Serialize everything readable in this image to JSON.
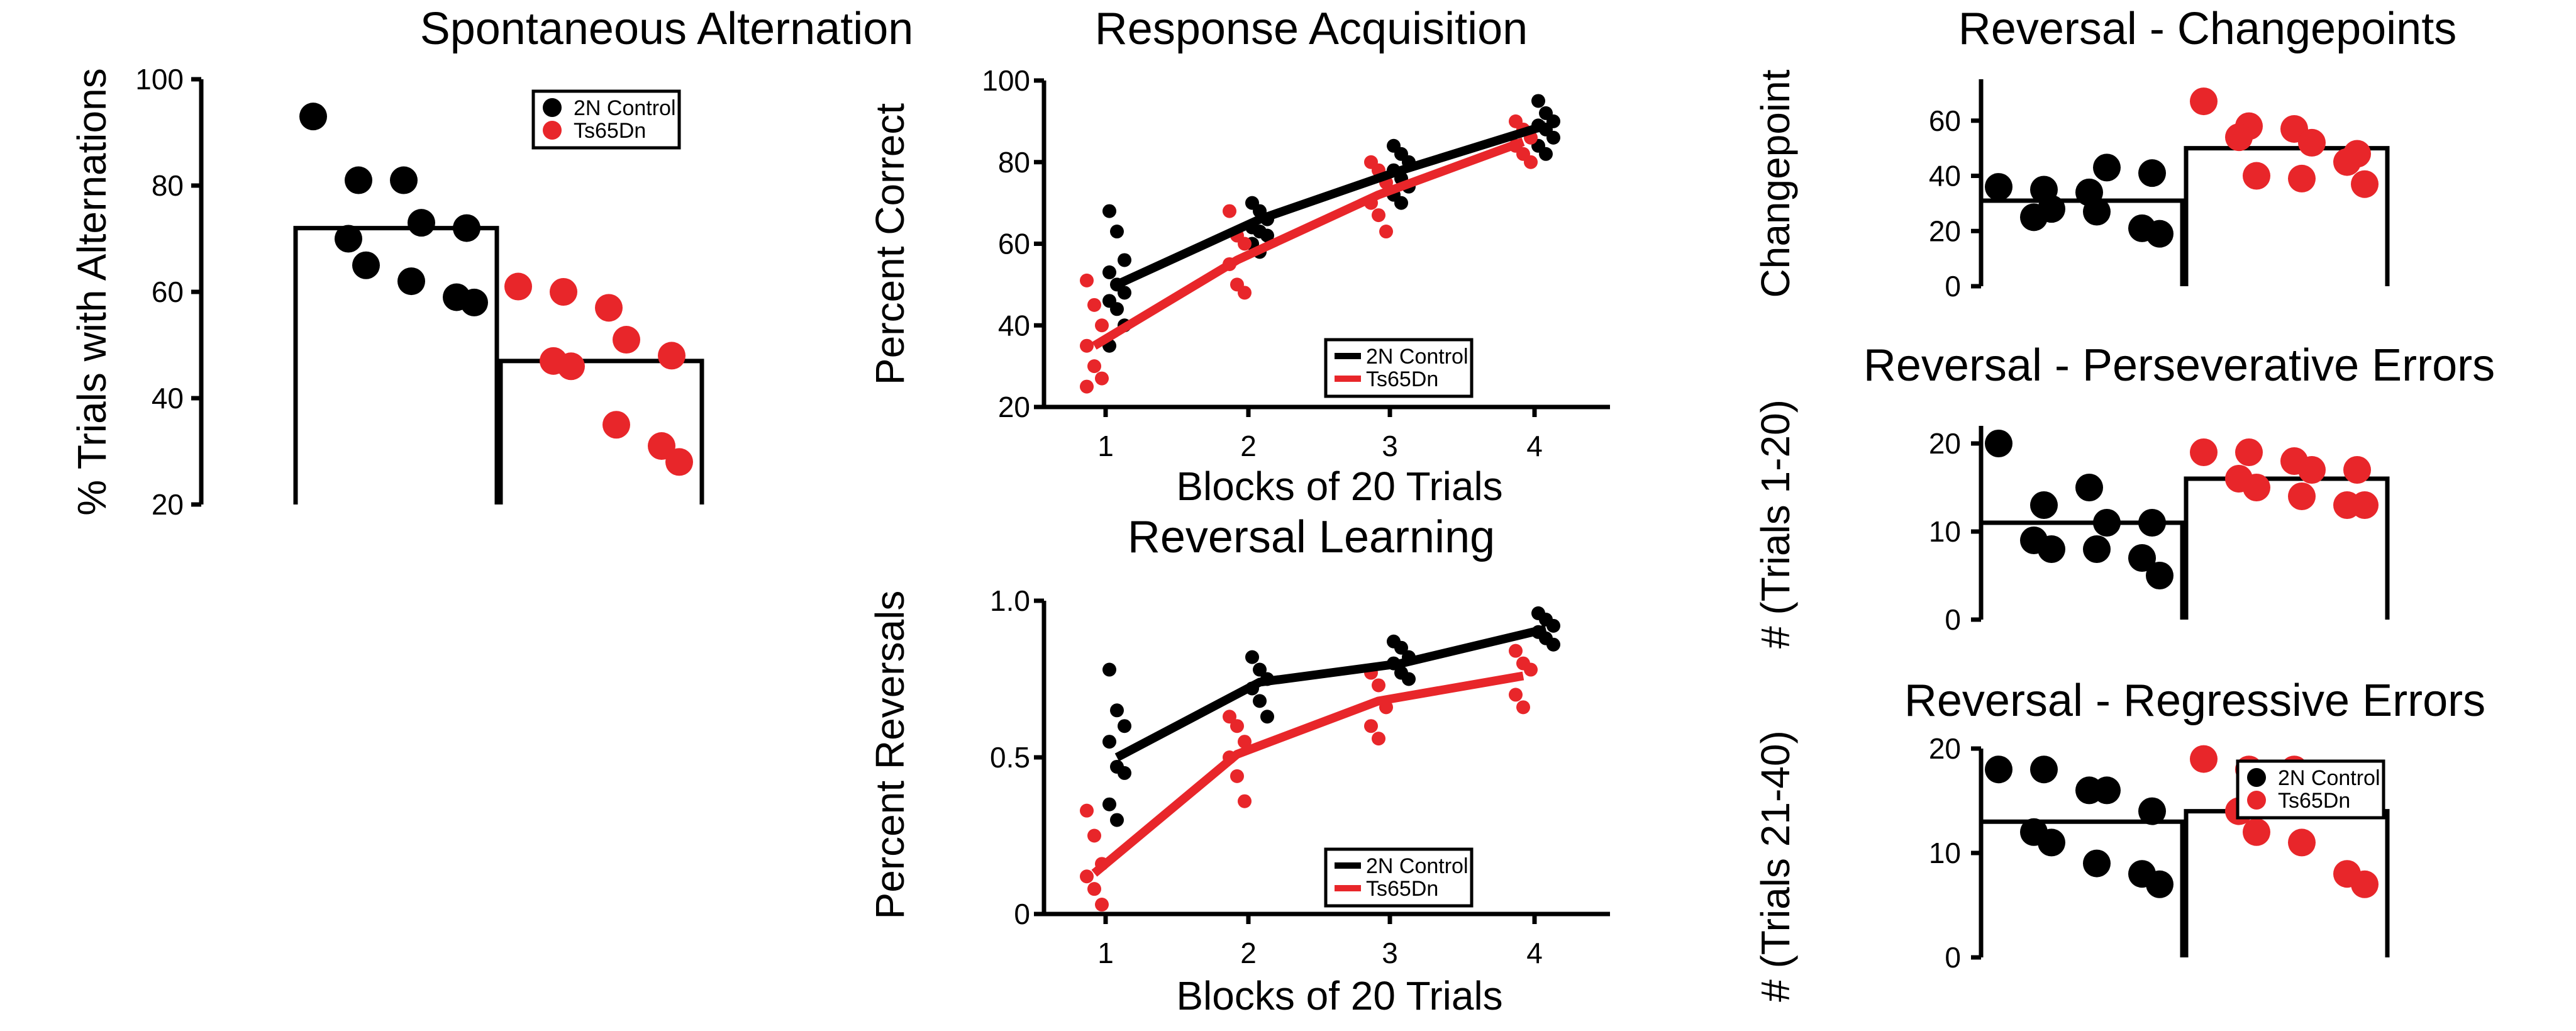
{
  "colors": {
    "control": "#000000",
    "ts": "#e8262a"
  },
  "chart_data": [
    {
      "id": "spontaneous",
      "type": "bar",
      "title": "Spontaneous Alternation",
      "xlabel": "",
      "ylabel": "% Trials with Alternations",
      "ylim": [
        20,
        100
      ],
      "yticks": [
        "20",
        "40",
        "60",
        "80",
        "100"
      ],
      "categories": [
        "2N Control",
        "Ts65Dn"
      ],
      "values": [
        72,
        47
      ],
      "points": [
        [
          93,
          81,
          81,
          73,
          72,
          70,
          65,
          62,
          59,
          58
        ],
        [
          61,
          60,
          57,
          51,
          48,
          47,
          46,
          35,
          31,
          28
        ]
      ],
      "legend": {
        "placement": "top-right",
        "entries": [
          "2N Control",
          "Ts65Dn"
        ]
      }
    },
    {
      "id": "acquisition",
      "type": "line",
      "title": "Response Acquisition",
      "xlabel": "Blocks of 20 Trials",
      "ylabel": "Percent Correct",
      "ylim": [
        20,
        100
      ],
      "yticks": [
        "20",
        "40",
        "60",
        "80",
        "100"
      ],
      "x": [
        1,
        2,
        3,
        4
      ],
      "xticks": [
        "1",
        "2",
        "3",
        "4"
      ],
      "series": [
        {
          "name": "2N Control",
          "values": [
            50,
            66,
            78,
            89
          ],
          "points": [
            [
              68,
              63,
              56,
              53,
              50,
              48,
              46,
              44,
              40,
              35
            ],
            [
              70,
              68,
              66,
              64,
              63,
              62,
              60,
              58
            ],
            [
              84,
              82,
              80,
              78,
              76,
              74,
              72,
              70
            ],
            [
              95,
              92,
              90,
              89,
              88,
              86,
              84,
              82
            ]
          ]
        },
        {
          "name": "Ts65Dn",
          "values": [
            35,
            56,
            72,
            85
          ],
          "points": [
            [
              51,
              45,
              40,
              35,
              30,
              27,
              25
            ],
            [
              68,
              62,
              60,
              55,
              50,
              48
            ],
            [
              80,
              78,
              75,
              70,
              67,
              63
            ],
            [
              90,
              88,
              86,
              84,
              82,
              80
            ]
          ]
        }
      ],
      "legend": {
        "placement": "bottom-right",
        "entries": [
          "2N Control",
          "Ts65Dn"
        ]
      }
    },
    {
      "id": "reversal",
      "type": "line",
      "title": "Reversal Learning",
      "xlabel": "Blocks of 20 Trials",
      "ylabel": "Percent Reversals",
      "ylim": [
        0,
        1.0
      ],
      "yticks": [
        "0",
        "0.5",
        "1.0"
      ],
      "x": [
        1,
        2,
        3,
        4
      ],
      "xticks": [
        "1",
        "2",
        "3",
        "4"
      ],
      "series": [
        {
          "name": "2N Control",
          "values": [
            0.5,
            0.74,
            0.8,
            0.91
          ],
          "points": [
            [
              0.78,
              0.65,
              0.6,
              0.55,
              0.47,
              0.45,
              0.35,
              0.3
            ],
            [
              0.82,
              0.78,
              0.75,
              0.72,
              0.68,
              0.63
            ],
            [
              0.87,
              0.85,
              0.82,
              0.8,
              0.77,
              0.75
            ],
            [
              0.96,
              0.94,
              0.92,
              0.9,
              0.88,
              0.86
            ]
          ]
        },
        {
          "name": "Ts65Dn",
          "values": [
            0.13,
            0.51,
            0.68,
            0.76
          ],
          "points": [
            [
              0.33,
              0.25,
              0.16,
              0.12,
              0.08,
              0.03
            ],
            [
              0.63,
              0.6,
              0.55,
              0.5,
              0.44,
              0.36
            ],
            [
              0.77,
              0.73,
              0.66,
              0.6,
              0.56
            ],
            [
              0.84,
              0.8,
              0.78,
              0.7,
              0.66
            ]
          ]
        }
      ],
      "legend": {
        "placement": "bottom-right",
        "entries": [
          "2N Control",
          "Ts65Dn"
        ]
      }
    },
    {
      "id": "changepoints",
      "type": "bar",
      "title": "Reversal - Changepoints",
      "xlabel": "",
      "ylabel": "Changepoint",
      "ylim": [
        0,
        75
      ],
      "yticks": [
        "0",
        "20",
        "40",
        "60"
      ],
      "categories": [
        "2N Control",
        "Ts65Dn"
      ],
      "values": [
        31,
        50
      ],
      "points": [
        [
          36,
          35,
          34,
          43,
          41,
          25,
          28,
          27,
          21,
          19
        ],
        [
          67,
          58,
          57,
          52,
          48,
          54,
          40,
          39,
          45,
          37
        ]
      ]
    },
    {
      "id": "perseverative",
      "type": "bar",
      "title": "Reversal - Perseverative Errors",
      "xlabel": "",
      "ylabel": "# (Trials 1-20)",
      "ylim": [
        0,
        22
      ],
      "yticks": [
        "0",
        "10",
        "20"
      ],
      "categories": [
        "2N Control",
        "Ts65Dn"
      ],
      "values": [
        11,
        16
      ],
      "points": [
        [
          20,
          13,
          15,
          11,
          11,
          9,
          8,
          8,
          7,
          5
        ],
        [
          19,
          19,
          18,
          17,
          17,
          16,
          15,
          14,
          13,
          13
        ]
      ]
    },
    {
      "id": "regressive",
      "type": "bar",
      "title": "Reversal - Regressive Errors",
      "xlabel": "",
      "ylabel": "# (Trials 21-40)",
      "ylim": [
        0,
        20
      ],
      "yticks": [
        "0",
        "10",
        "20"
      ],
      "categories": [
        "2N Control",
        "Ts65Dn"
      ],
      "values": [
        13,
        14
      ],
      "points": [
        [
          18,
          18,
          16,
          16,
          14,
          12,
          11,
          9,
          8,
          7
        ],
        [
          19,
          18,
          18,
          17,
          16,
          14,
          12,
          11,
          8,
          7
        ]
      ],
      "legend": {
        "placement": "top-right",
        "entries": [
          "2N Control",
          "Ts65Dn"
        ]
      }
    }
  ]
}
